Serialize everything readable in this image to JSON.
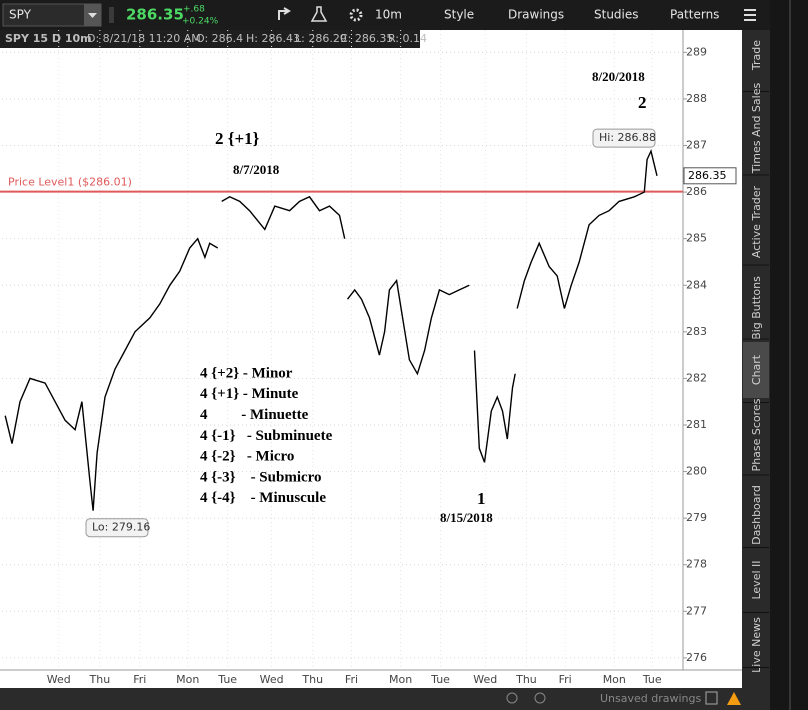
{
  "toolbar": {
    "symbol": "SPY",
    "last": "286.35",
    "change": "+.68",
    "change_pct": "+0.24%",
    "buttons": [
      "10m",
      "Style",
      "Drawings",
      "Studies",
      "Patterns"
    ]
  },
  "info_bar": [
    "SPY 15 D 10m",
    "D: 8/21/18 11:20 AM",
    "O: 286.4",
    "H: 286.43",
    "L: 286.29",
    "C: 286.35",
    "R: 0.14"
  ],
  "side_tabs": [
    "Trade",
    "Times And Sales",
    "Active Trader",
    "Big Buttons",
    "Chart",
    "Phase Scores",
    "Dashboard",
    "Level II",
    "Live News"
  ],
  "footer": {
    "status": "Unsaved drawings"
  },
  "chart_data": {
    "type": "line",
    "color": "#000000",
    "grid": true,
    "x": [
      0.08,
      0.25,
      0.45,
      0.7,
      1.08,
      1.33,
      1.58,
      1.83,
      2.0,
      2.2,
      2.28,
      2.38,
      2.58,
      2.83,
      3.08,
      3.33,
      3.7,
      3.95,
      4.2,
      4.45,
      4.7,
      4.9,
      5.08,
      5.2,
      5.4,
      5.45,
      5.5,
      5.7,
      5.95,
      6.2,
      6.58,
      6.83,
      7.2,
      7.45,
      7.7,
      7.95,
      8.2,
      8.45,
      8.58,
      8.62,
      8.65,
      8.83,
      9.0,
      9.2,
      9.45,
      9.58,
      9.7,
      9.88,
      10.03,
      10.2,
      10.4,
      10.58,
      10.75,
      10.95,
      11.2,
      11.45,
      11.7,
      11.75,
      11.83,
      11.95,
      12.08,
      12.25,
      12.4,
      12.53,
      12.65,
      12.78,
      12.85,
      12.88,
      12.9,
      13.08,
      13.25,
      13.45,
      13.7,
      13.9,
      14.08,
      14.25,
      14.45,
      14.7,
      14.95,
      15.2,
      15.45,
      15.83,
      16.08,
      16.15,
      16.25,
      16.4
    ],
    "values": [
      281.2,
      280.6,
      281.5,
      282.0,
      281.9,
      281.5,
      281.1,
      280.9,
      281.5,
      279.8,
      279.16,
      280.4,
      281.6,
      282.2,
      282.6,
      283.0,
      283.3,
      283.6,
      284.0,
      284.3,
      284.8,
      285.0,
      284.6,
      284.9,
      284.8,
      null,
      285.8,
      285.9,
      285.8,
      285.6,
      285.2,
      285.7,
      285.6,
      285.8,
      285.9,
      285.6,
      285.7,
      285.5,
      285.0,
      null,
      283.7,
      283.9,
      283.7,
      283.3,
      282.5,
      283.0,
      283.9,
      284.1,
      283.3,
      282.4,
      282.1,
      282.6,
      283.3,
      283.9,
      283.8,
      283.9,
      284.0,
      null,
      282.6,
      280.5,
      280.2,
      281.3,
      281.6,
      281.3,
      280.7,
      281.8,
      282.1,
      null,
      283.5,
      284.1,
      284.5,
      284.9,
      284.4,
      284.2,
      283.5,
      284.0,
      284.5,
      285.3,
      285.5,
      285.6,
      285.8,
      285.9,
      286.0,
      286.7,
      286.88,
      286.35
    ],
    "xlim": [
      0,
      17.05
    ],
    "xticks": [
      {
        "value": 1.42,
        "label": "Wed"
      },
      {
        "value": 2.45,
        "label": "Thu"
      },
      {
        "value": 3.45,
        "label": "Fri"
      },
      {
        "value": 4.65,
        "label": "Mon"
      },
      {
        "value": 5.65,
        "label": "Tue"
      },
      {
        "value": 6.75,
        "label": "Wed"
      },
      {
        "value": 7.78,
        "label": "Thu"
      },
      {
        "value": 8.75,
        "label": "Fri"
      },
      {
        "value": 9.98,
        "label": "Mon"
      },
      {
        "value": 10.98,
        "label": "Tue"
      },
      {
        "value": 12.1,
        "label": "Wed"
      },
      {
        "value": 13.13,
        "label": "Thu"
      },
      {
        "value": 14.1,
        "label": "Fri"
      },
      {
        "value": 15.33,
        "label": "Mon"
      },
      {
        "value": 16.28,
        "label": "Tue"
      }
    ],
    "ylim": [
      275.74,
      289.48
    ],
    "yticks": [
      276,
      277,
      278,
      279,
      280,
      281,
      282,
      283,
      284,
      285,
      286,
      287,
      288,
      289
    ],
    "price_level": {
      "value": 286.01,
      "label": "Price Level1 ($286.01)"
    },
    "last_price": 286.35,
    "high": {
      "value": 286.88,
      "label": "Hi: 286.88"
    },
    "low": {
      "value": 279.16,
      "label": "Lo: 279.16"
    },
    "annotations": [
      "2 {+1}",
      "8/7/2018",
      "8/20/2018",
      "2",
      "1",
      "8/15/2018",
      "4 {+2} - Minor",
      "4 {+1} - Minute",
      "4         - Minuette",
      "4 {-1}   - Subminuete",
      "4 {-2}   - Micro",
      "4 {-3}    - Submicro",
      "4 {-4}    - Minuscule"
    ]
  }
}
